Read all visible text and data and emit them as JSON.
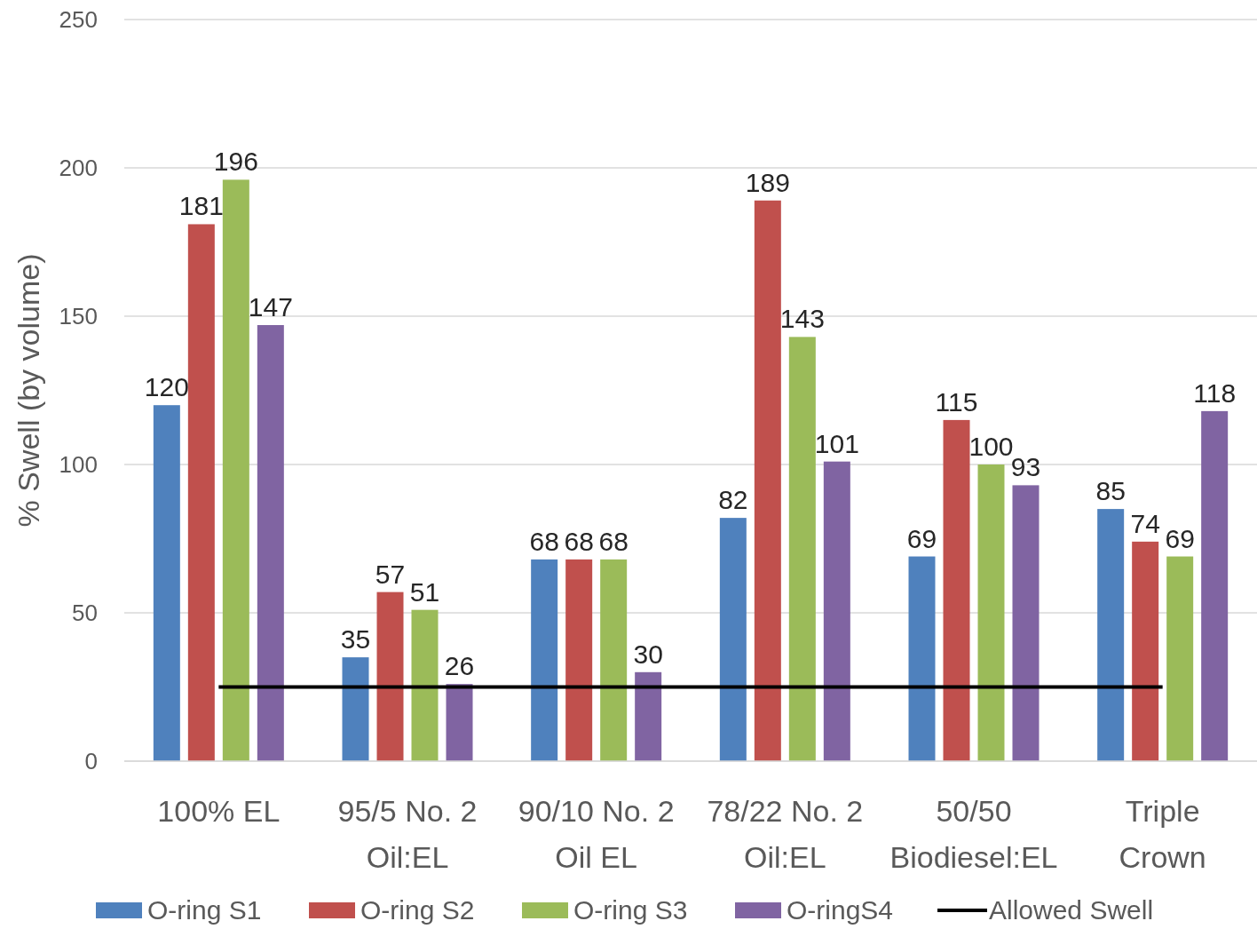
{
  "chart_data": {
    "type": "bar",
    "ylabel": "% Swell (by volume)",
    "categories": [
      "100% EL",
      "95/5 No. 2 Oil:EL",
      "90/10 No. 2 Oil EL",
      "78/22 No. 2 Oil:EL",
      "50/50 Biodiesel:EL",
      "Triple Crown"
    ],
    "series": [
      {
        "name": "O-ring S1",
        "color": "#4f81bd",
        "values": [
          120,
          35,
          68,
          82,
          69,
          85
        ],
        "value_labels": [
          "120",
          "35",
          "68",
          "82",
          "69",
          "85"
        ]
      },
      {
        "name": "O-ring S2",
        "color": "#c0504d",
        "values": [
          181,
          57,
          68,
          189,
          115,
          74
        ],
        "value_labels": [
          "181",
          "57",
          "68",
          "189",
          "115",
          "74"
        ]
      },
      {
        "name": "O-ring S3",
        "color": "#9bbb59",
        "values": [
          196,
          51,
          68,
          143,
          100,
          69
        ],
        "value_labels": [
          "196",
          "51",
          "68",
          "143",
          "100",
          "69"
        ]
      },
      {
        "name": "O-ringS4",
        "color": "#8064a2",
        "values": [
          147,
          26,
          30,
          101,
          93,
          118
        ],
        "value_labels": [
          "147",
          "26",
          "30",
          "101",
          "93",
          "118"
        ]
      },
      {
        "name": "Allowed Swell",
        "type": "line",
        "color": "#000000",
        "marker": "none",
        "values": [
          25,
          25,
          25,
          25,
          25,
          25
        ]
      }
    ],
    "ylim": [
      0,
      250
    ],
    "yticks": [
      0,
      50,
      100,
      150,
      200,
      250
    ],
    "grid": "y",
    "legend": "bottom"
  }
}
